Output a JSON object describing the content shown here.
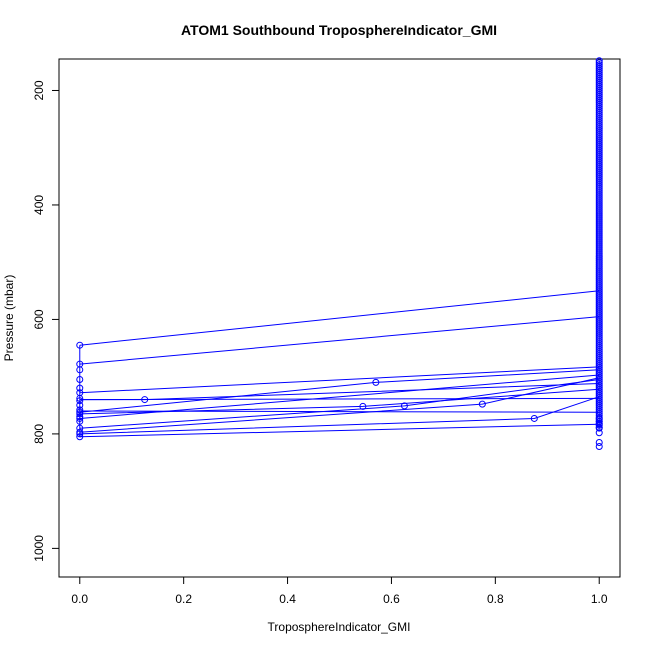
{
  "chart_data": {
    "type": "scatter",
    "title": "ATOM1 Southbound TroposphereIndicator_GMI",
    "xlabel": "TroposphereIndicator_GMI",
    "ylabel": "Pressure (mbar)",
    "xlim": [
      -0.04,
      1.04
    ],
    "ylim": [
      1050,
      145
    ],
    "y_axis_inverted": true,
    "grid": false,
    "x_ticks": [
      0.0,
      0.2,
      0.4,
      0.6,
      0.8,
      1.0
    ],
    "x_tick_labels": [
      "0.0",
      "0.2",
      "0.4",
      "0.6",
      "0.8",
      "1.0"
    ],
    "y_ticks": [
      200,
      400,
      600,
      800,
      1000
    ],
    "y_tick_labels": [
      "200",
      "400",
      "600",
      "800",
      "1000"
    ],
    "color": "#0000ff",
    "marker": "open-circle",
    "series": [
      {
        "x": [
          0,
          1
        ],
        "y": [
          645,
          550
        ]
      },
      {
        "x": [
          0,
          1
        ],
        "y": [
          678,
          595
        ]
      },
      {
        "x": [
          0,
          1
        ],
        "y": [
          728,
          683
        ]
      },
      {
        "x": [
          0,
          0.125,
          1
        ],
        "y": [
          740,
          740,
          712
        ]
      },
      {
        "x": [
          0,
          0.57,
          1
        ],
        "y": [
          762,
          710,
          688
        ]
      },
      {
        "x": [
          0,
          1
        ],
        "y": [
          773,
          697
        ]
      },
      {
        "x": [
          0,
          0.545,
          1
        ],
        "y": [
          765,
          752,
          722
        ]
      },
      {
        "x": [
          0,
          0.625,
          1
        ],
        "y": [
          790,
          751,
          705
        ]
      },
      {
        "x": [
          0,
          0.775,
          1
        ],
        "y": [
          797,
          748,
          702
        ]
      },
      {
        "x": [
          0,
          1
        ],
        "y": [
          805,
          783
        ]
      },
      {
        "x": [
          0,
          0.875,
          1
        ],
        "y": [
          800,
          773,
          735
        ]
      },
      {
        "x": [
          0,
          1
        ],
        "y": [
          760,
          762
        ]
      },
      {
        "x": [
          0,
          1
        ],
        "y": [
          740,
          738
        ]
      }
    ],
    "points_x0": [
      645,
      678,
      688,
      705,
      720,
      728,
      738,
      742,
      750,
      758,
      762,
      765,
      770,
      773,
      778,
      790,
      797,
      800,
      805
    ],
    "points_x1_low": [
      773,
      778,
      783,
      790,
      798,
      815,
      822
    ],
    "points_x1_dense_range": [
      148,
      790
    ]
  }
}
